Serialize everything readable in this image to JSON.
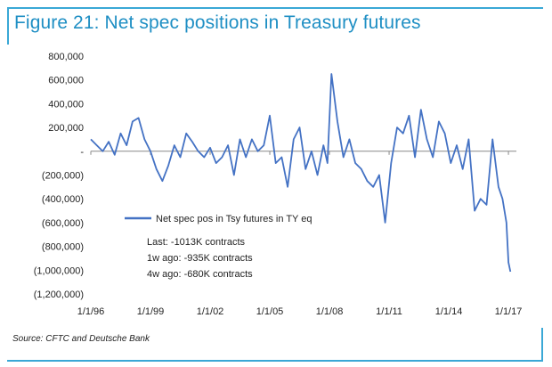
{
  "title": "Figure 21: Net spec positions in Treasury futures",
  "source": "Source: CFTC and Deutsche Bank",
  "colors": {
    "title": "#1f8fc4",
    "frame": "#3aa8d6",
    "series": "#4472c4"
  },
  "chart_data": {
    "type": "line",
    "ylim": [
      -1200000,
      800000
    ],
    "xlim": [
      1996.0,
      2017.4
    ],
    "grid": false,
    "legend_position": "lower-left",
    "y_ticks": [
      {
        "value": 800000,
        "label": "800,000"
      },
      {
        "value": 600000,
        "label": "600,000"
      },
      {
        "value": 400000,
        "label": "400,000"
      },
      {
        "value": 200000,
        "label": "200,000"
      },
      {
        "value": 0,
        "label": "-"
      },
      {
        "value": -200000,
        "label": "(200,000)"
      },
      {
        "value": -400000,
        "label": "(400,000)"
      },
      {
        "value": -600000,
        "label": "(600,000)"
      },
      {
        "value": -800000,
        "label": "(800,000)"
      },
      {
        "value": -1000000,
        "label": "(1,000,000)"
      },
      {
        "value": -1200000,
        "label": "(1,200,000)"
      }
    ],
    "x_ticks": [
      {
        "value": 1996,
        "label": "1/1/96"
      },
      {
        "value": 1999,
        "label": "1/1/99"
      },
      {
        "value": 2002,
        "label": "1/1/02"
      },
      {
        "value": 2005,
        "label": "1/1/05"
      },
      {
        "value": 2008,
        "label": "1/1/08"
      },
      {
        "value": 2011,
        "label": "1/1/11"
      },
      {
        "value": 2014,
        "label": "1/1/14"
      },
      {
        "value": 2017,
        "label": "1/1/17"
      }
    ],
    "series": [
      {
        "name": "Net spec pos in Tsy futures in TY eq",
        "x": [
          1996.0,
          1996.3,
          1996.6,
          1996.9,
          1997.2,
          1997.5,
          1997.8,
          1998.1,
          1998.4,
          1998.7,
          1999.0,
          1999.3,
          1999.6,
          1999.9,
          2000.2,
          2000.5,
          2000.8,
          2001.1,
          2001.4,
          2001.7,
          2002.0,
          2002.3,
          2002.6,
          2002.9,
          2003.2,
          2003.5,
          2003.8,
          2004.1,
          2004.4,
          2004.7,
          2005.0,
          2005.3,
          2005.6,
          2005.9,
          2006.2,
          2006.5,
          2006.8,
          2007.1,
          2007.4,
          2007.7,
          2007.9,
          2008.1,
          2008.4,
          2008.7,
          2009.0,
          2009.3,
          2009.6,
          2009.9,
          2010.2,
          2010.5,
          2010.8,
          2011.1,
          2011.4,
          2011.7,
          2012.0,
          2012.3,
          2012.6,
          2012.9,
          2013.2,
          2013.5,
          2013.8,
          2014.1,
          2014.4,
          2014.7,
          2015.0,
          2015.3,
          2015.6,
          2015.9,
          2016.2,
          2016.5,
          2016.7,
          2016.9,
          2017.0,
          2017.1
        ],
        "y": [
          100000,
          50000,
          0,
          80000,
          -30000,
          150000,
          50000,
          250000,
          280000,
          100000,
          0,
          -150000,
          -250000,
          -120000,
          50000,
          -50000,
          150000,
          80000,
          0,
          -50000,
          30000,
          -100000,
          -50000,
          50000,
          -200000,
          100000,
          -50000,
          100000,
          0,
          50000,
          300000,
          -100000,
          -50000,
          -300000,
          100000,
          200000,
          -150000,
          0,
          -200000,
          50000,
          -100000,
          650000,
          250000,
          -50000,
          100000,
          -100000,
          -150000,
          -250000,
          -300000,
          -200000,
          -600000,
          -100000,
          200000,
          150000,
          300000,
          -50000,
          350000,
          100000,
          -50000,
          250000,
          150000,
          -100000,
          50000,
          -150000,
          100000,
          -500000,
          -400000,
          -450000,
          100000,
          -300000,
          -400000,
          -600000,
          -935000,
          -1013000
        ]
      }
    ],
    "annotations": [
      "Last: -1013K contracts",
      "1w ago: -935K contracts",
      "4w ago: -680K contracts"
    ]
  }
}
